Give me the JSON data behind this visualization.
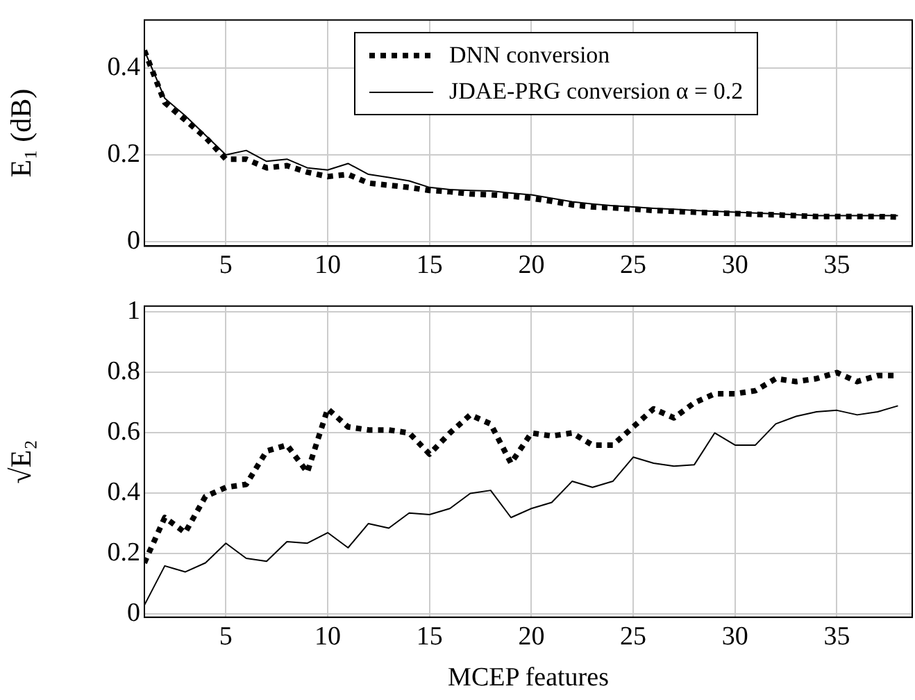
{
  "chart_data": [
    {
      "type": "line",
      "ylabel": "E₁ (dB)",
      "x": [
        1,
        2,
        3,
        4,
        5,
        6,
        7,
        8,
        9,
        10,
        11,
        12,
        13,
        14,
        15,
        16,
        17,
        18,
        19,
        20,
        21,
        22,
        23,
        24,
        25,
        26,
        27,
        28,
        29,
        30,
        31,
        32,
        33,
        34,
        35,
        36,
        37,
        38
      ],
      "xlim": [
        1,
        38.7
      ],
      "xticks": [
        5,
        10,
        15,
        20,
        25,
        30,
        35
      ],
      "ylim": [
        -0.01,
        0.51
      ],
      "yticks": [
        0,
        0.2,
        0.4
      ],
      "grid": true,
      "legend": "top",
      "marker": "none",
      "series": [
        {
          "name": "DNN conversion",
          "color": "#000000",
          "line_style": "dotted",
          "values": [
            0.44,
            0.32,
            0.28,
            0.24,
            0.19,
            0.19,
            0.17,
            0.175,
            0.16,
            0.15,
            0.155,
            0.135,
            0.13,
            0.125,
            0.118,
            0.115,
            0.11,
            0.108,
            0.105,
            0.1,
            0.093,
            0.085,
            0.08,
            0.078,
            0.075,
            0.072,
            0.07,
            0.068,
            0.066,
            0.065,
            0.063,
            0.062,
            0.06,
            0.058,
            0.058,
            0.058,
            0.058,
            0.057
          ]
        },
        {
          "name": "JDAE-PRG conversion α = 0.2",
          "color": "#000000",
          "line_style": "solid",
          "values": [
            0.44,
            0.33,
            0.29,
            0.245,
            0.2,
            0.21,
            0.185,
            0.19,
            0.17,
            0.165,
            0.18,
            0.155,
            0.148,
            0.14,
            0.125,
            0.12,
            0.118,
            0.117,
            0.112,
            0.108,
            0.1,
            0.092,
            0.087,
            0.083,
            0.08,
            0.077,
            0.075,
            0.072,
            0.07,
            0.068,
            0.066,
            0.064,
            0.062,
            0.06,
            0.06,
            0.06,
            0.06,
            0.06
          ]
        }
      ]
    },
    {
      "type": "line",
      "xlabel": "MCEP features",
      "ylabel": "√E₂",
      "x": [
        1,
        2,
        3,
        4,
        5,
        6,
        7,
        8,
        9,
        10,
        11,
        12,
        13,
        14,
        15,
        16,
        17,
        18,
        19,
        20,
        21,
        22,
        23,
        24,
        25,
        26,
        27,
        28,
        29,
        30,
        31,
        32,
        33,
        34,
        35,
        36,
        37,
        38
      ],
      "xlim": [
        1,
        38.7
      ],
      "xticks": [
        5,
        10,
        15,
        20,
        25,
        30,
        35
      ],
      "ylim": [
        -0.01,
        1.02
      ],
      "yticks": [
        0,
        0.2,
        0.4,
        0.6,
        0.8,
        1
      ],
      "grid": true,
      "marker": "none",
      "series": [
        {
          "color": "#000000",
          "line_style": "dotted",
          "values": [
            0.17,
            0.32,
            0.27,
            0.39,
            0.42,
            0.43,
            0.54,
            0.56,
            0.47,
            0.68,
            0.62,
            0.61,
            0.61,
            0.6,
            0.53,
            0.6,
            0.66,
            0.63,
            0.5,
            0.6,
            0.59,
            0.6,
            0.56,
            0.56,
            0.62,
            0.68,
            0.65,
            0.7,
            0.73,
            0.73,
            0.74,
            0.78,
            0.77,
            0.78,
            0.8,
            0.77,
            0.79,
            0.79
          ]
        },
        {
          "color": "#000000",
          "line_style": "solid",
          "values": [
            0.03,
            0.16,
            0.14,
            0.17,
            0.235,
            0.185,
            0.175,
            0.24,
            0.235,
            0.27,
            0.22,
            0.3,
            0.285,
            0.335,
            0.33,
            0.35,
            0.4,
            0.41,
            0.32,
            0.35,
            0.37,
            0.44,
            0.42,
            0.44,
            0.52,
            0.5,
            0.49,
            0.495,
            0.6,
            0.56,
            0.56,
            0.63,
            0.655,
            0.67,
            0.675,
            0.66,
            0.67,
            0.69
          ]
        }
      ]
    }
  ]
}
